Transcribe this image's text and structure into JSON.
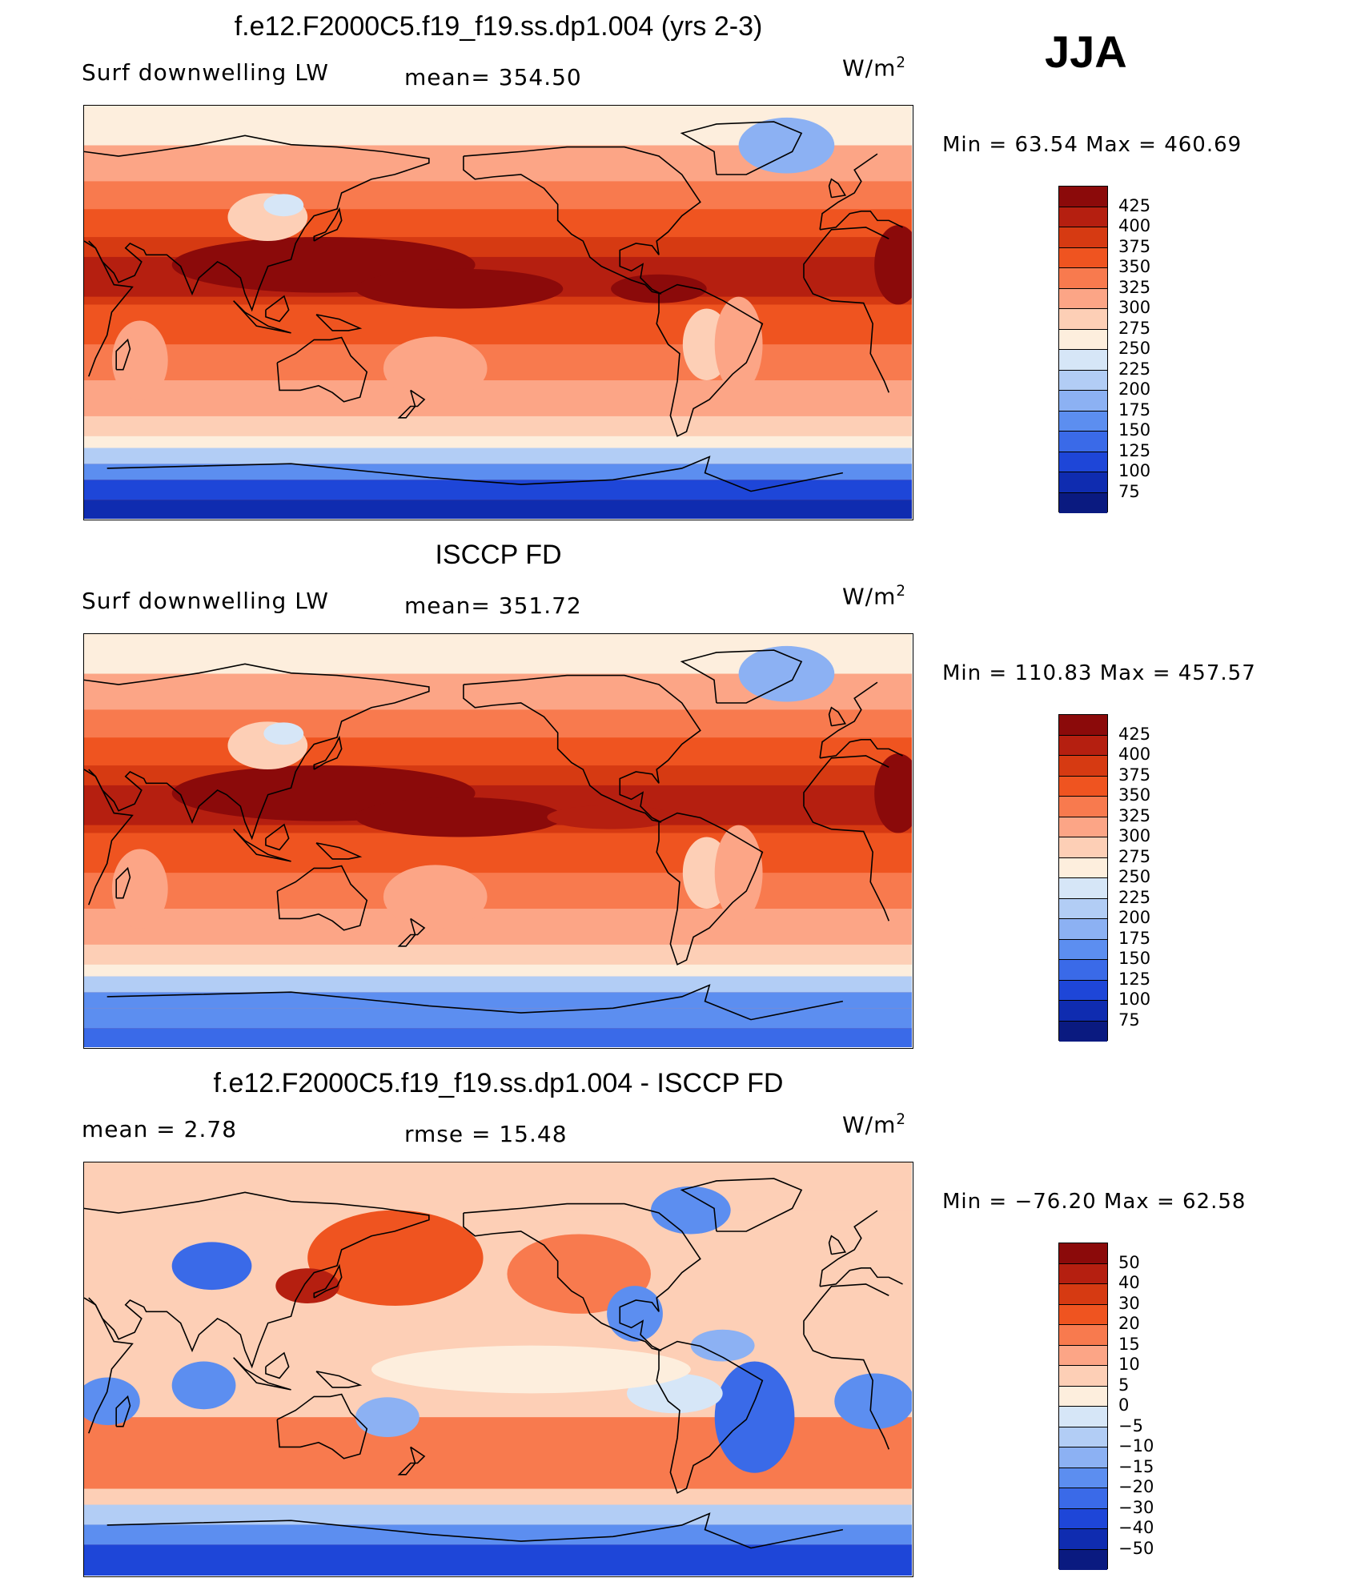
{
  "season": "JJA",
  "panels": [
    {
      "title": "f.e12.F2000C5.f19_f19.ss.dp1.004 (yrs 2-3)",
      "left_label": "Surf  downwelling  LW",
      "mid_label": "mean=  354.50",
      "units_base": "W/m",
      "units_sup": "2",
      "minmax": "Min  =     63.54  Max  =  460.69",
      "levels": [
        "425",
        "400",
        "375",
        "350",
        "325",
        "300",
        "275",
        "250",
        "225",
        "200",
        "175",
        "150",
        "125",
        "100",
        "75"
      ],
      "colors": [
        "#8b0a0a",
        "#b51f10",
        "#d63a12",
        "#ef5420",
        "#f87a4e",
        "#fca586",
        "#fdcfb6",
        "#fdeedd",
        "#d6e6f7",
        "#b2cdf5",
        "#8cb1f3",
        "#5c8ef0",
        "#3a6ae8",
        "#1e46d8",
        "#0f2cb0",
        "#0a1a80"
      ],
      "map": "model"
    },
    {
      "title": "ISCCP FD",
      "left_label": "Surf  downwelling  LW",
      "mid_label": "mean=  351.72",
      "units_base": "W/m",
      "units_sup": "2",
      "minmax": "Min  =  110.83  Max  =  457.57",
      "levels": [
        "425",
        "400",
        "375",
        "350",
        "325",
        "300",
        "275",
        "250",
        "225",
        "200",
        "175",
        "150",
        "125",
        "100",
        "75"
      ],
      "colors": [
        "#8b0a0a",
        "#b51f10",
        "#d63a12",
        "#ef5420",
        "#f87a4e",
        "#fca586",
        "#fdcfb6",
        "#fdeedd",
        "#d6e6f7",
        "#b2cdf5",
        "#8cb1f3",
        "#5c8ef0",
        "#3a6ae8",
        "#1e46d8",
        "#0f2cb0",
        "#0a1a80"
      ],
      "map": "obs"
    },
    {
      "title": "f.e12.F2000C5.f19_f19.ss.dp1.004 - ISCCP FD",
      "left_label": "mean  =      2.78",
      "mid_label": "rmse  =    15.48",
      "units_base": "W/m",
      "units_sup": "2",
      "minmax": "Min  =  −76.20  Max  =     62.58",
      "levels": [
        "50",
        "40",
        "30",
        "20",
        "15",
        "10",
        "5",
        "0",
        "−5",
        "−10",
        "−15",
        "−20",
        "−30",
        "−40",
        "−50"
      ],
      "colors": [
        "#8b0a0a",
        "#b51f10",
        "#d63a12",
        "#ef5420",
        "#f87a4e",
        "#fca586",
        "#fdcfb6",
        "#fdeedd",
        "#d6e6f7",
        "#b2cdf5",
        "#8cb1f3",
        "#5c8ef0",
        "#3a6ae8",
        "#1e46d8",
        "#0f2cb0",
        "#0a1a80"
      ],
      "map": "diff"
    }
  ]
}
